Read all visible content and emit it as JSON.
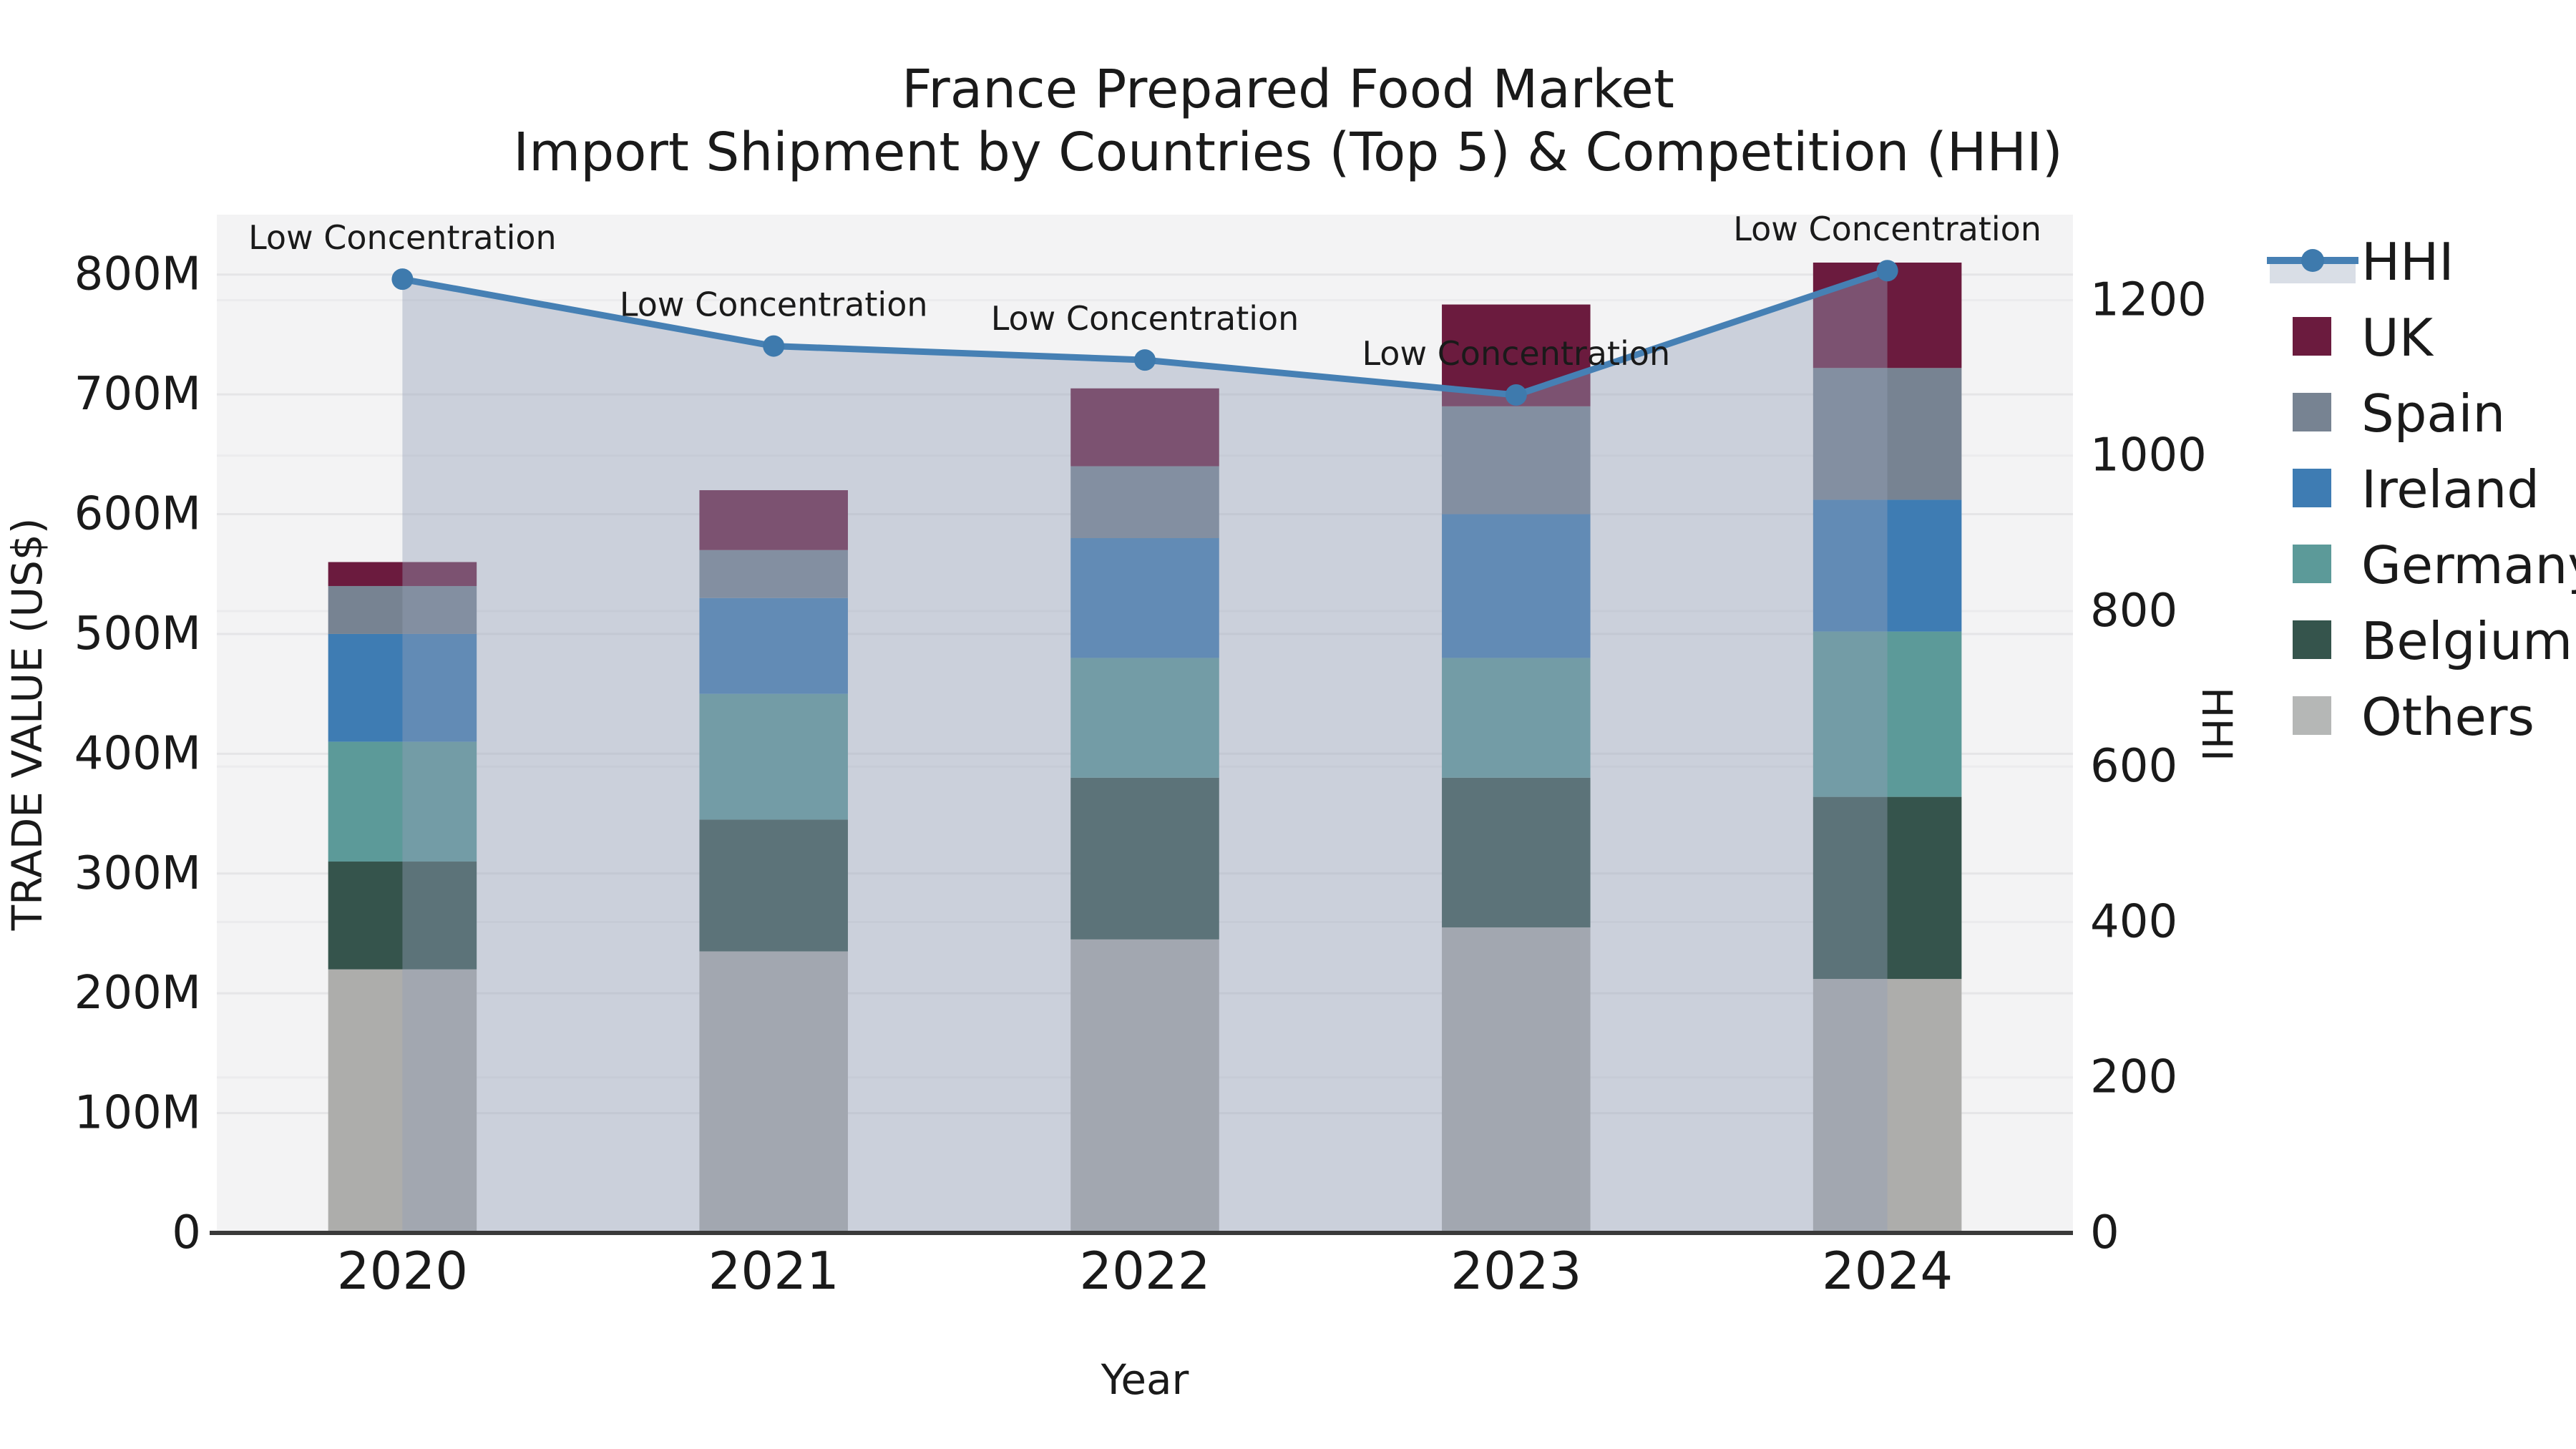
{
  "title": {
    "line1": "France Prepared Food Market",
    "line2": "Import Shipment by Countries (Top 5) & Competition (HHI)"
  },
  "chart_data": {
    "type": "composed-stacked-bar-line",
    "categories": [
      "2020",
      "2021",
      "2022",
      "2023",
      "2024"
    ],
    "bar_unit": "M US$",
    "bar_series": [
      {
        "name": "Others",
        "color": "#adadab",
        "values": [
          220,
          235,
          245,
          255,
          212
        ]
      },
      {
        "name": "Belgium",
        "color": "#35544c",
        "values": [
          90,
          110,
          135,
          125,
          152
        ]
      },
      {
        "name": "Germany",
        "color": "#5c9a99",
        "values": [
          100,
          105,
          100,
          100,
          138
        ]
      },
      {
        "name": "Ireland",
        "color": "#3e7cb3",
        "values": [
          90,
          80,
          100,
          120,
          110
        ]
      },
      {
        "name": "Spain",
        "color": "#778392",
        "values": [
          40,
          40,
          60,
          90,
          110
        ]
      },
      {
        "name": "UK",
        "color": "#6b1b3e",
        "values": [
          20,
          50,
          65,
          85,
          88
        ]
      }
    ],
    "bar_totals": [
      560,
      620,
      705,
      775,
      810
    ],
    "line_series": {
      "name": "HHI",
      "color": "#4680b4",
      "marker_color": "#3e7aad",
      "area_color": "#93a0b8",
      "area_opacity": 0.42,
      "values": [
        1227,
        1141,
        1123,
        1078,
        1238
      ]
    },
    "annotations": [
      {
        "text": "Low Concentration",
        "category": "2020"
      },
      {
        "text": "Low Concentration",
        "category": "2021"
      },
      {
        "text": "Low Concentration",
        "category": "2022"
      },
      {
        "text": "Low Concentration",
        "category": "2023"
      },
      {
        "text": "Low Concentration",
        "category": "2024"
      }
    ],
    "axes": {
      "left": {
        "label": "TRADE VALUE (US$)",
        "max": 850,
        "ticks": [
          {
            "v": 0,
            "label": "0"
          },
          {
            "v": 100,
            "label": "100M"
          },
          {
            "v": 200,
            "label": "200M"
          },
          {
            "v": 300,
            "label": "300M"
          },
          {
            "v": 400,
            "label": "400M"
          },
          {
            "v": 500,
            "label": "500M"
          },
          {
            "v": 600,
            "label": "600M"
          },
          {
            "v": 700,
            "label": "700M"
          },
          {
            "v": 800,
            "label": "800M"
          }
        ]
      },
      "right": {
        "label": "HHI",
        "max": 1310,
        "ticks": [
          {
            "v": 0,
            "label": "0"
          },
          {
            "v": 200,
            "label": "200"
          },
          {
            "v": 400,
            "label": "400"
          },
          {
            "v": 600,
            "label": "600"
          },
          {
            "v": 800,
            "label": "800"
          },
          {
            "v": 1000,
            "label": "1000"
          },
          {
            "v": 1200,
            "label": "1200"
          }
        ]
      },
      "x": {
        "label": "Year"
      }
    },
    "legend": [
      {
        "name": "HHI",
        "type": "line"
      },
      {
        "name": "UK",
        "type": "patch",
        "color": "#6b1b3e"
      },
      {
        "name": "Spain",
        "type": "patch",
        "color": "#778392"
      },
      {
        "name": "Ireland",
        "type": "patch",
        "color": "#3e7cb3"
      },
      {
        "name": "Germany",
        "type": "patch",
        "color": "#5c9a99"
      },
      {
        "name": "Belgium",
        "type": "patch",
        "color": "#35544c"
      },
      {
        "name": "Others",
        "type": "patch",
        "color": "#b5b7b6"
      }
    ],
    "style": {
      "plot_bg": "#f3f3f4",
      "grid_left_color": "#e5e5e7",
      "grid_right_color": "#ebebed",
      "axis_line_color": "#3a3a3a",
      "text_color": "#1a1a1a"
    },
    "layout_hints": {
      "legend_position": "right-top-outside",
      "grid": "horizontal-both-axes",
      "bar_relative_width": 0.4
    }
  }
}
